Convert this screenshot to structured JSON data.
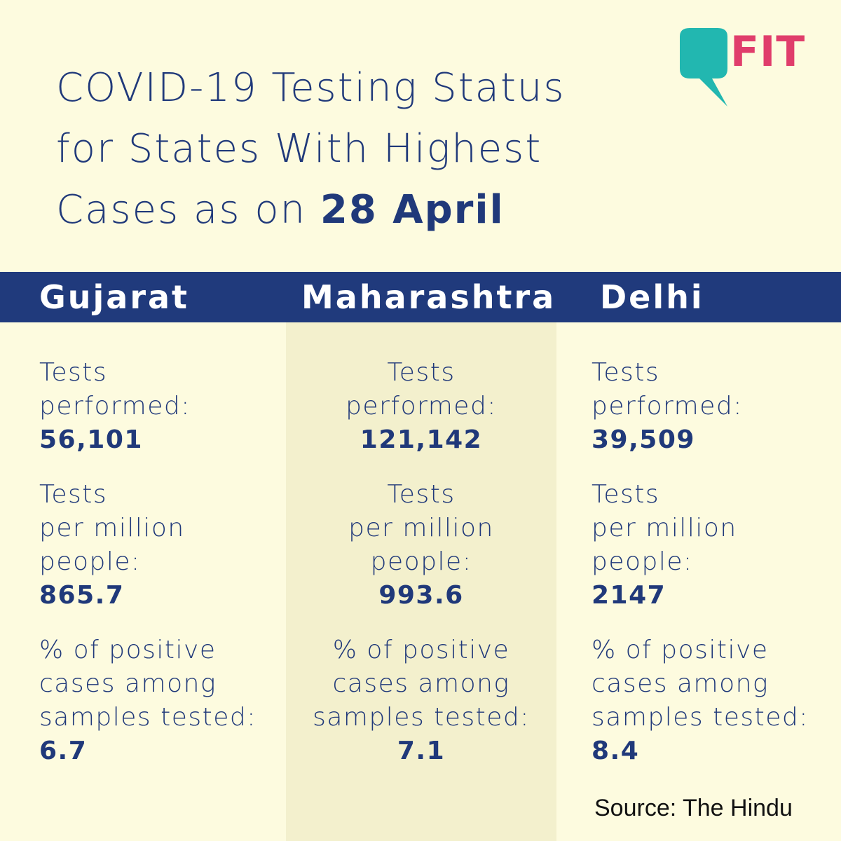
{
  "title": {
    "line1": "COVID-19 Testing Status",
    "line2": "for States With Highest",
    "line3_prefix": "Cases as on ",
    "line3_date": "28 April"
  },
  "logo": {
    "text": "FIT",
    "bubble_color": "#22b7b0",
    "text_color": "#e03d6b"
  },
  "colors": {
    "background": "#fdfbdf",
    "band": "#203a7c",
    "highlight_column": "#f3f0cd",
    "text": "#20397a"
  },
  "states": [
    {
      "name": "Gujarat",
      "tests_label": "Tests\nperformed:",
      "tests_value": "56,101",
      "per_million_label": "Tests\nper million\npeople:",
      "per_million_value": "865.7",
      "positive_label": "% of positive\ncases among\nsamples tested:",
      "positive_value": "6.7"
    },
    {
      "name": "Maharashtra",
      "tests_label": "Tests\nperformed:",
      "tests_value": "121,142",
      "per_million_label": "Tests\nper million\npeople:",
      "per_million_value": "993.6",
      "positive_label": "% of positive\ncases among\nsamples tested:",
      "positive_value": "7.1"
    },
    {
      "name": "Delhi",
      "tests_label": "Tests\nperformed:",
      "tests_value": "39,509",
      "per_million_label": "Tests\nper million\npeople:",
      "per_million_value": "2147",
      "positive_label": "% of positive\ncases among\nsamples tested:",
      "positive_value": "8.4"
    }
  ],
  "source": "Source: The Hindu"
}
